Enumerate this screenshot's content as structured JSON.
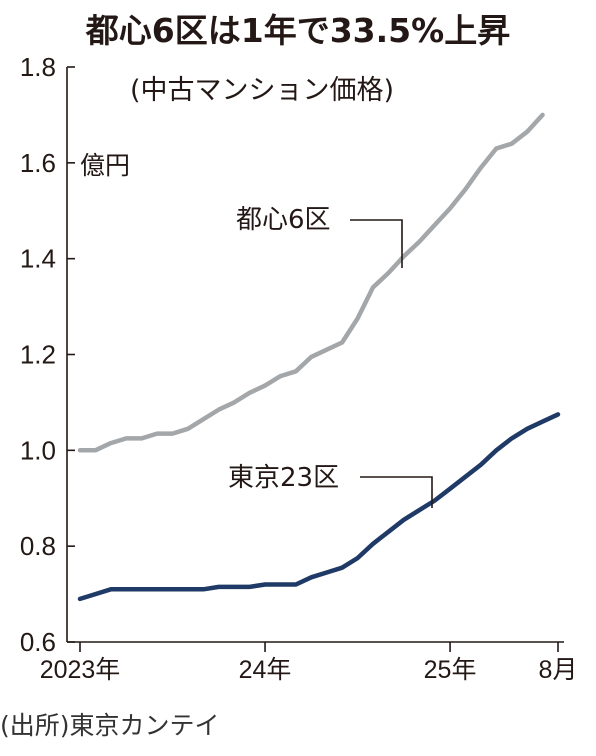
{
  "header": {
    "title": "都心6区は1年で33.5%上昇",
    "subtitle": "(中古マンション価格)",
    "unit": "億円",
    "source": "(出所)東京カンテイ"
  },
  "chart_data": {
    "type": "line",
    "title": "都心6区は1年で33.5%上昇",
    "subtitle": "(中古マンション価格)",
    "ylabel": "億円",
    "ylim": [
      0.6,
      1.8
    ],
    "yticks": [
      0.6,
      0.8,
      1.0,
      1.2,
      1.4,
      1.6,
      1.8
    ],
    "ytick_labels": [
      "0.6",
      "0.8",
      "1.0",
      "1.2",
      "1.4",
      "1.6",
      "1.8"
    ],
    "x": [
      "2023-01",
      "2023-02",
      "2023-03",
      "2023-04",
      "2023-05",
      "2023-06",
      "2023-07",
      "2023-08",
      "2023-09",
      "2023-10",
      "2023-11",
      "2023-12",
      "2024-01",
      "2024-02",
      "2024-03",
      "2024-04",
      "2024-05",
      "2024-06",
      "2024-07",
      "2024-08",
      "2024-09",
      "2024-10",
      "2024-11",
      "2024-12",
      "2025-01",
      "2025-02",
      "2025-03",
      "2025-04",
      "2025-05",
      "2025-06",
      "2025-07",
      "2025-08"
    ],
    "xticks": [
      {
        "index": 0,
        "label": "2023年"
      },
      {
        "index": 12,
        "label": "24年"
      },
      {
        "index": 24,
        "label": "25年"
      },
      {
        "index": 31,
        "label": "8月"
      }
    ],
    "series": [
      {
        "name": "都心6区",
        "color": "#a4a7aa",
        "values": [
          1.0,
          1.0,
          1.015,
          1.025,
          1.025,
          1.035,
          1.035,
          1.045,
          1.065,
          1.085,
          1.1,
          1.12,
          1.135,
          1.155,
          1.165,
          1.195,
          1.21,
          1.225,
          1.275,
          1.34,
          1.37,
          1.405,
          1.435,
          1.47,
          1.505,
          1.545,
          1.59,
          1.63,
          1.64,
          1.665,
          1.7,
          null
        ]
      },
      {
        "name": "東京23区",
        "color": "#1f3a66",
        "values": [
          0.69,
          0.7,
          0.71,
          0.71,
          0.71,
          0.71,
          0.71,
          0.71,
          0.71,
          0.715,
          0.715,
          0.715,
          0.72,
          0.72,
          0.72,
          0.735,
          0.745,
          0.755,
          0.775,
          0.805,
          0.83,
          0.855,
          0.875,
          0.895,
          0.92,
          0.945,
          0.97,
          1.0,
          1.025,
          1.045,
          1.06,
          1.075
        ]
      }
    ],
    "annotations": [
      "都心6区",
      "東京23区"
    ],
    "grid": false,
    "legend": "inline labels with leader lines"
  }
}
